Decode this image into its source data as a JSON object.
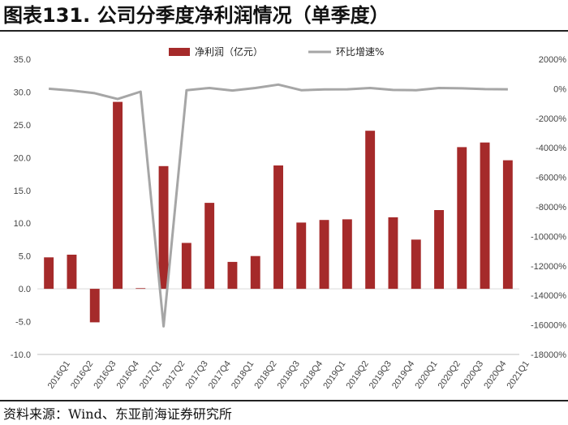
{
  "title": "图表131. 公司分季度净利润情况（单季度）",
  "source": "资料来源：Wind、东亚前海证券研究所",
  "chart_data": {
    "type": "bar",
    "categories": [
      "2016Q1",
      "2016Q2",
      "2016Q3",
      "2016Q4",
      "2017Q1",
      "2017Q2",
      "2017Q3",
      "2017Q4",
      "2018Q1",
      "2018Q2",
      "2018Q3",
      "2018Q4",
      "2019Q1",
      "2019Q2",
      "2019Q3",
      "2019Q4",
      "2020Q1",
      "2020Q2",
      "2020Q3",
      "2020Q4",
      "2021Q1"
    ],
    "series": [
      {
        "name": "净利润（亿元）",
        "type": "bar",
        "axis": "left",
        "color": "#a52a2a",
        "values": [
          4.8,
          5.2,
          -5.1,
          28.5,
          0.1,
          18.7,
          7.0,
          13.1,
          4.1,
          5.0,
          18.8,
          10.1,
          10.5,
          10.6,
          24.1,
          10.9,
          7.5,
          12.0,
          21.6,
          22.3,
          19.6
        ]
      },
      {
        "name": "环比增速%",
        "type": "line",
        "axis": "right",
        "color": "#a6a6a6",
        "values": [
          0,
          -120,
          -300,
          -700,
          -200,
          -16100,
          -100,
          50,
          -120,
          50,
          280,
          -100,
          -50,
          -40,
          50,
          -80,
          -100,
          50,
          30,
          -30,
          -40
        ]
      }
    ],
    "y_left": {
      "ylim": [
        -10,
        35
      ],
      "ticks": [
        "-10.0",
        "-5.0",
        "0.0",
        "5.0",
        "10.0",
        "15.0",
        "20.0",
        "25.0",
        "30.0",
        "35.0"
      ]
    },
    "y_right": {
      "ylim": [
        -18000,
        2000
      ],
      "ticks": [
        "-18000%",
        "-16000%",
        "-14000%",
        "-12000%",
        "-10000%",
        "-8000%",
        "-6000%",
        "-4000%",
        "-2000%",
        "0%",
        "2000%"
      ]
    },
    "legend_position": "top-center",
    "grid": false
  }
}
